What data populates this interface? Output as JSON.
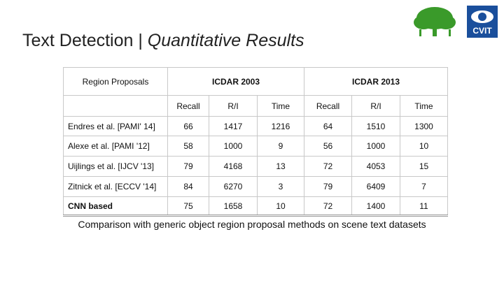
{
  "header": {
    "title_main": "Text Detection | ",
    "title_italic": "Quantitative Results",
    "logo_text": "CVIT"
  },
  "table": {
    "corner": "Region Proposals",
    "groups": [
      "ICDAR 2003",
      "ICDAR 2013"
    ],
    "subheaders": [
      "Recall",
      "R/I",
      "Time",
      "Recall",
      "R/I",
      "Time"
    ],
    "rows": [
      [
        "Endres et al. [PAMI' 14]",
        66,
        1417,
        1216,
        64,
        1510,
        1300
      ],
      [
        "Alexe et al. [PAMI '12]",
        58,
        1000,
        9,
        56,
        1000,
        10
      ],
      [
        "Uijlings et al. [IJCV '13]",
        79,
        4168,
        13,
        72,
        4053,
        15
      ],
      [
        "Zitnick et al. [ECCV '14]",
        84,
        6270,
        3,
        79,
        6409,
        7
      ],
      [
        "CNN based",
        75,
        1658,
        10,
        72,
        1400,
        11
      ]
    ]
  },
  "caption": "Comparison with generic object region proposal methods on scene text datasets"
}
